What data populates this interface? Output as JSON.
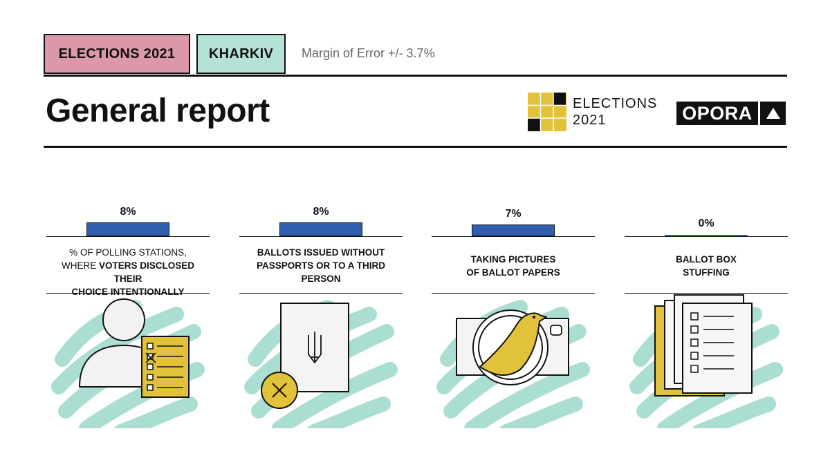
{
  "header": {
    "tag_elections": "ELECTIONS 2021",
    "tag_city": "KHARKIV",
    "margin_of_error": "Margin of Error  +/- 3.7%",
    "title": "General report",
    "logo_line1": "ELECTIONS",
    "logo_line2": "2021",
    "brand": "OPORA"
  },
  "colors": {
    "tag_elections": "#dc98a9",
    "tag_city": "#b5e2d7",
    "bar": "#2f5fae",
    "accent_yellow": "#e2c23b",
    "mint": "#a7dcd0"
  },
  "chart_data": {
    "type": "bar",
    "categories": [
      "% OF POLLING STATIONS, WHERE VOTERS DISCLOSED THEIR CHOICE INTENTIONALLY",
      "BALLOTS ISSUED WITHOUT PASSPORTS OR TO A THIRD PERSON",
      "TAKING PICTURES OF BALLOT PAPERS",
      "BALLOT BOX STUFFING"
    ],
    "values": [
      8,
      8,
      7,
      0
    ],
    "data_labels": [
      "8%",
      "8%",
      "7%",
      "0%"
    ],
    "label_lines": [
      [
        {
          "text": "% OF POLLING STATIONS,",
          "bold": false
        },
        {
          "text": "WHERE ",
          "bold": false
        },
        {
          "text": "VOTERS DISCLOSED THEIR",
          "bold": true
        },
        {
          "text": "CHOICE INTENTIONALLY",
          "bold": true
        }
      ],
      [
        {
          "text": "BALLOTS ISSUED WITHOUT",
          "bold": true
        },
        {
          "text": "PASSPORTS OR TO A THIRD",
          "bold": true
        },
        {
          "text": "PERSON",
          "bold": true
        }
      ],
      [
        {
          "text": "TAKING PICTURES",
          "bold": true
        },
        {
          "text": "OF BALLOT PAPERS",
          "bold": true
        }
      ],
      [
        {
          "text": "BALLOT BOX",
          "bold": true
        },
        {
          "text": "STUFFING",
          "bold": true
        }
      ]
    ],
    "icons": [
      "voter-with-ballot-icon",
      "ballot-with-trident-crossed-icon",
      "camera-with-bird-icon",
      "stack-of-ballots-icon"
    ],
    "ylim": [
      0,
      8
    ],
    "grid": false,
    "legend": "none"
  }
}
